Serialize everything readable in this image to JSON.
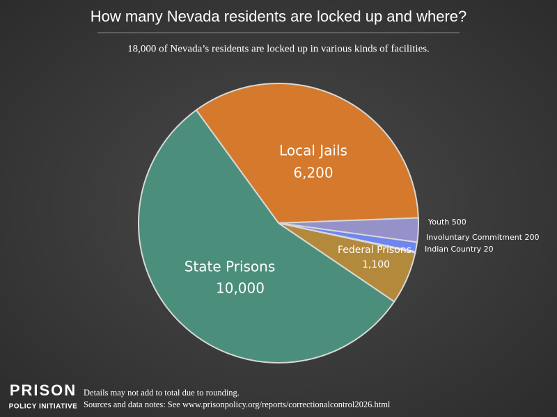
{
  "chart_data": {
    "type": "pie",
    "title": "How many Nevada residents are locked up and where?",
    "subtitle": "18,000 of Nevada’s residents are locked up in various kinds of facilities.",
    "categories": [
      "Local Jails",
      "Youth",
      "Involuntary Commitment",
      "Indian Country",
      "Federal Prisons",
      "State Prisons"
    ],
    "values": [
      6200,
      500,
      200,
      20,
      1100,
      10000
    ],
    "value_labels": [
      "6,200",
      "500",
      "200",
      "20",
      "1,100",
      "10,000"
    ],
    "colors": [
      "#d5792c",
      "#9592c9",
      "#6f86f0",
      "#8fa0d8",
      "#b38a3c",
      "#4b8e7b"
    ]
  },
  "footer": {
    "logo": [
      "PRISON",
      "POLICY INITIATIVE"
    ],
    "notes": [
      "Details may not add to total due to rounding.",
      "Sources and data notes: See www.prisonpolicy.org/reports/correctionalcontrol2026.html"
    ]
  }
}
